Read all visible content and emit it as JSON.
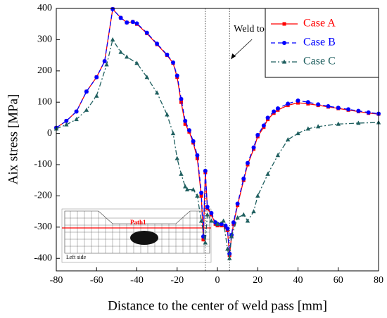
{
  "chart_data": {
    "type": "line",
    "xlabel": "Distance to the center of weld pass [mm]",
    "ylabel": "Aix stress [MPa]",
    "annotation": "Weld toe",
    "inset_labels": [
      "Path1",
      "Left side"
    ],
    "xlim": [
      -80,
      80
    ],
    "xticks": [
      -80,
      -60,
      -40,
      -20,
      0,
      20,
      40,
      60,
      80
    ],
    "ylim": [
      -440,
      400
    ],
    "yticks": [
      -400,
      -300,
      -200,
      -100,
      0,
      100,
      200,
      300,
      400
    ],
    "vlines": [
      -6,
      6
    ],
    "legend": "upper right",
    "series": [
      {
        "name": "Case A",
        "color": "#ff0000",
        "marker": "square",
        "dash": "solid",
        "x": [
          -80,
          -75,
          -70,
          -65,
          -60,
          -56,
          -52,
          -48,
          -45,
          -42,
          -40,
          -35,
          -30,
          -25,
          -22,
          -20,
          -18,
          -16,
          -14,
          -12,
          -10,
          -8,
          -7,
          -6,
          -5,
          -3,
          -1,
          0,
          2,
          4,
          5,
          6,
          7,
          8,
          10,
          13,
          15,
          18,
          20,
          23,
          25,
          28,
          30,
          35,
          40,
          45,
          50,
          55,
          60,
          65,
          70,
          75,
          80
        ],
        "values": [
          18,
          40,
          70,
          134,
          180,
          231,
          398,
          370,
          355,
          357,
          350,
          320,
          285,
          250,
          225,
          180,
          100,
          30,
          5,
          -30,
          -80,
          -200,
          -340,
          -125,
          -240,
          -260,
          -290,
          -295,
          -295,
          -300,
          -310,
          -390,
          -330,
          -290,
          -230,
          -150,
          -100,
          -50,
          -10,
          20,
          45,
          65,
          75,
          90,
          98,
          95,
          90,
          85,
          80,
          75,
          70,
          65,
          62
        ]
      },
      {
        "name": "Case B",
        "color": "#0000ff",
        "marker": "circle",
        "dash": "dashed",
        "x": [
          -80,
          -75,
          -70,
          -65,
          -60,
          -56,
          -52,
          -48,
          -45,
          -42,
          -40,
          -35,
          -30,
          -25,
          -22,
          -20,
          -18,
          -16,
          -14,
          -12,
          -10,
          -8,
          -7,
          -6,
          -5,
          -3,
          -1,
          0,
          2,
          4,
          5,
          6,
          7,
          8,
          10,
          13,
          15,
          18,
          20,
          23,
          25,
          28,
          30,
          35,
          40,
          45,
          50,
          55,
          60,
          65,
          70,
          75,
          80
        ],
        "values": [
          18,
          40,
          70,
          134,
          180,
          231,
          398,
          370,
          355,
          357,
          352,
          322,
          287,
          252,
          227,
          185,
          110,
          40,
          10,
          -25,
          -70,
          -190,
          -330,
          -120,
          -235,
          -255,
          -285,
          -290,
          -290,
          -295,
          -305,
          -385,
          -325,
          -285,
          -225,
          -145,
          -95,
          -45,
          -5,
          25,
          50,
          70,
          80,
          95,
          105,
          100,
          93,
          87,
          82,
          77,
          72,
          67,
          63
        ]
      },
      {
        "name": "Case C",
        "color": "#1f5f5f",
        "marker": "triangle",
        "dash": "dashdot",
        "x": [
          -80,
          -75,
          -70,
          -65,
          -60,
          -55,
          -52,
          -48,
          -45,
          -40,
          -35,
          -30,
          -25,
          -22,
          -20,
          -18,
          -16,
          -15,
          -12,
          -10,
          -8,
          -6,
          -5,
          -3,
          0,
          3,
          5,
          6,
          7,
          10,
          13,
          15,
          18,
          20,
          25,
          30,
          35,
          40,
          45,
          50,
          60,
          70,
          80
        ],
        "values": [
          15,
          28,
          45,
          75,
          120,
          220,
          300,
          260,
          245,
          225,
          180,
          130,
          60,
          0,
          -80,
          -130,
          -170,
          -180,
          -180,
          -200,
          -280,
          -350,
          -260,
          -280,
          -290,
          -280,
          -370,
          -400,
          -330,
          -270,
          -260,
          -280,
          -250,
          -200,
          -130,
          -70,
          -20,
          0,
          15,
          22,
          30,
          33,
          35
        ]
      }
    ]
  }
}
